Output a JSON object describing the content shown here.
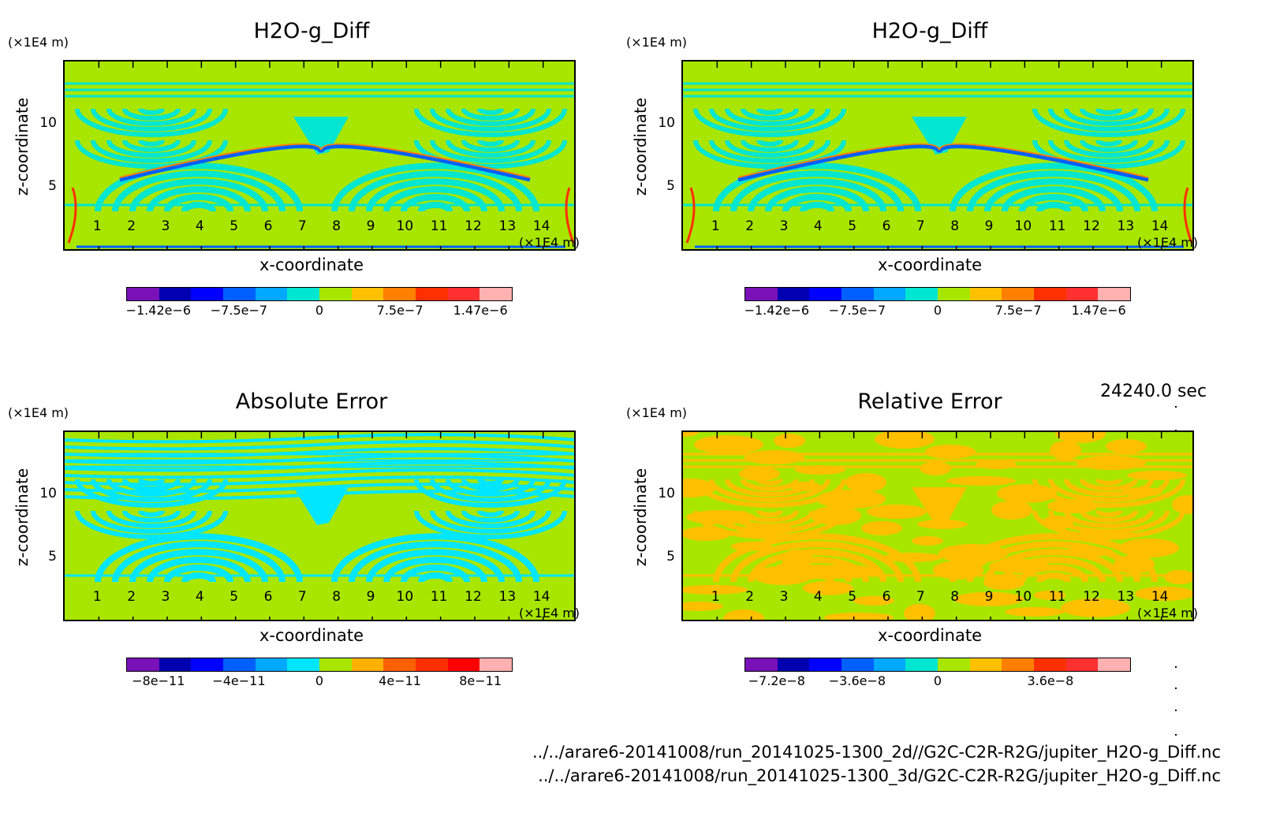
{
  "chart_data": [
    {
      "type": "heatmap",
      "title": "H2O-g_Diff",
      "xlabel": "x-coordinate",
      "ylabel": "z-coordinate",
      "x_unit": "(×1E4 m)",
      "y_unit": "(×1E4 m)",
      "x_ticks": [
        "1",
        "2",
        "3",
        "4",
        "5",
        "6",
        "7",
        "8",
        "9",
        "10",
        "11",
        "12",
        "13",
        "14"
      ],
      "y_ticks": [
        "5",
        "10"
      ],
      "xlim": [
        0,
        15
      ],
      "ylim": [
        0,
        15
      ],
      "colorbar_labels": [
        "−1.42e−6",
        "−7.5e−7",
        "0",
        "7.5e−7",
        "1.47e−6"
      ],
      "colors": [
        "#7a10b8",
        "#0000b0",
        "#0000ff",
        "#0060ff",
        "#00a8ff",
        "#00e6d0",
        "#a8e600",
        "#ffc000",
        "#ff8000",
        "#ff3000",
        "#ff3030",
        "#ffb0b0"
      ],
      "background_color": "#a8e600",
      "pattern_color": "#00e6d0"
    },
    {
      "type": "heatmap",
      "title": "H2O-g_Diff",
      "xlabel": "x-coordinate",
      "ylabel": "z-coordinate",
      "x_unit": "(×1E4 m)",
      "y_unit": "(×1E4 m)",
      "x_ticks": [
        "1",
        "2",
        "3",
        "4",
        "5",
        "6",
        "7",
        "8",
        "9",
        "10",
        "11",
        "12",
        "13",
        "14"
      ],
      "y_ticks": [
        "5",
        "10"
      ],
      "xlim": [
        0,
        15
      ],
      "ylim": [
        0,
        15
      ],
      "colorbar_labels": [
        "−1.42e−6",
        "−7.5e−7",
        "0",
        "7.5e−7",
        "1.47e−6"
      ],
      "colors": [
        "#7a10b8",
        "#0000b0",
        "#0000ff",
        "#0060ff",
        "#00a8ff",
        "#00e6d0",
        "#a8e600",
        "#ffc000",
        "#ff8000",
        "#ff3000",
        "#ff3030",
        "#ffb0b0"
      ],
      "background_color": "#a8e600",
      "pattern_color": "#00e6d0"
    },
    {
      "type": "heatmap",
      "title": "Absolute Error",
      "xlabel": "x-coordinate",
      "ylabel": "z-coordinate",
      "x_unit": "(×1E4 m)",
      "y_unit": "(×1E4 m)",
      "x_ticks": [
        "1",
        "2",
        "3",
        "4",
        "5",
        "6",
        "7",
        "8",
        "9",
        "10",
        "11",
        "12",
        "13",
        "14"
      ],
      "y_ticks": [
        "5",
        "10"
      ],
      "xlim": [
        0,
        15
      ],
      "ylim": [
        0,
        15
      ],
      "colorbar_labels": [
        "−8e−11",
        "−4e−11",
        "0",
        "4e−11",
        "8e−11"
      ],
      "colors": [
        "#7a10b8",
        "#0000b0",
        "#0000ff",
        "#0060ff",
        "#00a8ff",
        "#00e6ff",
        "#a8e600",
        "#ffb000",
        "#ff6000",
        "#ff3000",
        "#ff0000",
        "#ffb0b0"
      ],
      "background_color": "#a8e600",
      "pattern_color": "#00e6ff"
    },
    {
      "type": "heatmap",
      "title": "Relative Error",
      "xlabel": "x-coordinate",
      "ylabel": "z-coordinate",
      "x_unit": "(×1E4 m)",
      "y_unit": "(×1E4 m)",
      "x_ticks": [
        "1",
        "2",
        "3",
        "4",
        "5",
        "6",
        "7",
        "8",
        "9",
        "10",
        "11",
        "12",
        "13",
        "14"
      ],
      "y_ticks": [
        "5",
        "10"
      ],
      "xlim": [
        0,
        15
      ],
      "ylim": [
        0,
        15
      ],
      "colorbar_labels": [
        "−7.2e−8",
        "−3.6e−8",
        "0",
        "3.6e−8"
      ],
      "colors": [
        "#7a10b8",
        "#0000b0",
        "#0000ff",
        "#0060ff",
        "#00a8ff",
        "#00e6d0",
        "#a8e600",
        "#ffc000",
        "#ff8000",
        "#ff3000",
        "#ff3030",
        "#ffb0b0"
      ],
      "background_color": "#a8e600",
      "pattern_color": "#ffc000"
    }
  ],
  "time_label": "24240.0 sec",
  "file_paths": [
    "../../arare6-20141008/run_20141025-1300_2d//G2C-C2R-R2G/jupiter_H2O-g_Diff.nc",
    "../../arare6-20141008/run_20141025-1300_3d/G2C-C2R-R2G/jupiter_H2O-g_Diff.nc"
  ]
}
